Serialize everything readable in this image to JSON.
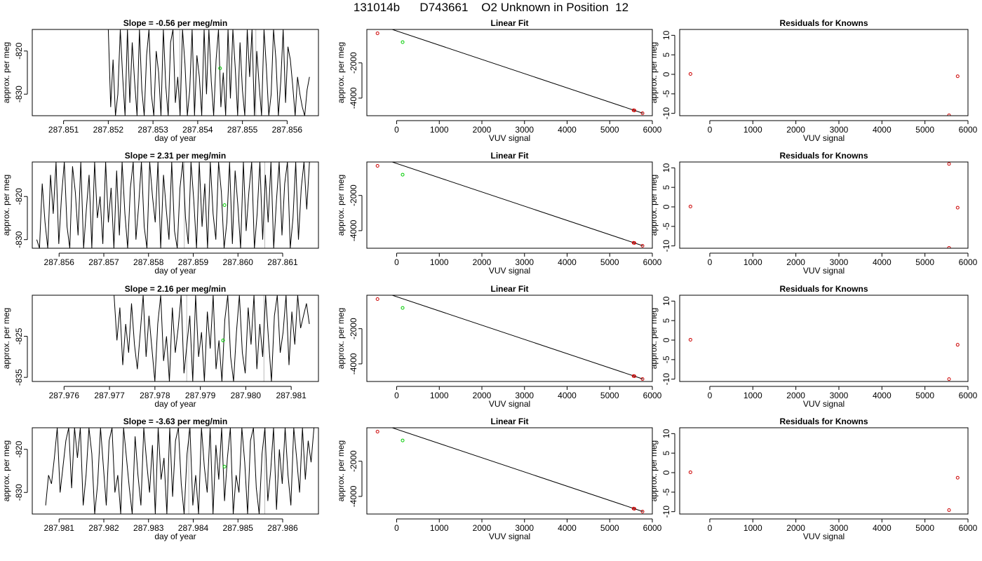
{
  "title": "131014b      D743661    O2 Unknown in Position  12",
  "colors": {
    "line": "#000000",
    "known_point": "#cc0000",
    "unknown_point": "#00cc00",
    "marker_line": "#bbbbbb",
    "fit_line": "#000000"
  },
  "chart_data": [
    {
      "type": "line",
      "row": 0,
      "title": "Slope =  -0.56  per meg/min",
      "xlabel": "day of year",
      "ylabel": "approx. per meg",
      "xlim": [
        287.8503,
        287.8567
      ],
      "ylim": [
        -835,
        -815
      ],
      "xticks": [
        "287.851",
        "287.852",
        "287.853",
        "287.854",
        "287.855",
        "287.856"
      ],
      "yticks": [
        "-820",
        "-830"
      ],
      "ytick_values": [
        -820,
        -830
      ],
      "xtick_values": [
        287.851,
        287.852,
        287.853,
        287.854,
        287.855,
        287.856
      ],
      "markers": [
        287.8536,
        287.8553
      ],
      "unknown_point": {
        "x": 287.8545,
        "y": -824
      },
      "series_start": 287.852,
      "series_end": 287.8565,
      "values": [
        -815,
        -833,
        -822,
        -835,
        -830,
        -815,
        -826,
        -835,
        -815,
        -832,
        -818,
        -827,
        -835,
        -815,
        -829,
        -835,
        -821,
        -815,
        -830,
        -835,
        -820,
        -825,
        -835,
        -815,
        -828,
        -835,
        -818,
        -815,
        -832,
        -826,
        -835,
        -815,
        -823,
        -835,
        -829,
        -815,
        -835,
        -821,
        -826,
        -835,
        -815,
        -830,
        -815,
        -827,
        -835,
        -822,
        -815,
        -833,
        -825,
        -835,
        -815,
        -831,
        -815,
        -824,
        -835,
        -818,
        -829,
        -835,
        -815,
        -826,
        -815,
        -835,
        -820,
        -828,
        -835,
        -815,
        -824,
        -835,
        -830,
        -815,
        -822,
        -835,
        -827,
        -815,
        -832,
        -819,
        -822,
        -828,
        -835,
        -826,
        -830,
        -833,
        -835,
        -829,
        -826
      ]
    },
    {
      "type": "scatter",
      "row": 0,
      "title": "Linear Fit",
      "xlabel": "VUV signal",
      "ylabel": "approx. per meg",
      "xlim": [
        -700,
        6000
      ],
      "ylim": [
        -5000,
        -100
      ],
      "xticks": [
        "0",
        "1000",
        "2000",
        "3000",
        "4000",
        "5000",
        "6000"
      ],
      "xtick_values": [
        0,
        1000,
        2000,
        3000,
        4000,
        5000,
        6000
      ],
      "yticks": [
        "-2000",
        "-4000"
      ],
      "ytick_values": [
        -2000,
        -4000
      ],
      "fit_line": [
        [
          -600,
          300
        ],
        [
          5780,
          -4860
        ]
      ],
      "known": [
        [
          -450,
          -320
        ],
        [
          5560,
          -4690
        ],
        [
          5580,
          -4700
        ],
        [
          5770,
          -4860
        ]
      ],
      "unknown": [
        [
          140,
          -820
        ]
      ]
    },
    {
      "type": "scatter",
      "row": 0,
      "title": "Residuals for Knowns",
      "xlabel": "VUV signal",
      "ylabel": "approx. per meg",
      "xlim": [
        -700,
        6000
      ],
      "ylim": [
        -10.6,
        11.5
      ],
      "xticks": [
        "0",
        "1000",
        "2000",
        "3000",
        "4000",
        "5000",
        "6000"
      ],
      "xtick_values": [
        0,
        1000,
        2000,
        3000,
        4000,
        5000,
        6000
      ],
      "yticks": [
        "10",
        "5",
        "0",
        "-5",
        "-10"
      ],
      "ytick_values": [
        10,
        5,
        0,
        -5,
        -10
      ],
      "known": [
        [
          -450,
          0.1
        ],
        [
          5560,
          -10.5
        ],
        [
          5760,
          -0.5
        ]
      ]
    },
    {
      "type": "line",
      "row": 1,
      "title": "Slope =  2.31  per meg/min",
      "xlabel": "day of year",
      "ylabel": "approx. per meg",
      "xlim": [
        287.8554,
        287.8618
      ],
      "ylim": [
        -832,
        -812
      ],
      "xticks": [
        "287.856",
        "287.857",
        "287.858",
        "287.859",
        "287.860",
        "287.861"
      ],
      "xtick_values": [
        287.856,
        287.857,
        287.858,
        287.859,
        287.86,
        287.861
      ],
      "yticks": [
        "-820",
        "-830"
      ],
      "ytick_values": [
        -820,
        -830
      ],
      "markers": [
        287.8588,
        287.8606
      ],
      "unknown_point": {
        "x": 287.8597,
        "y": -822
      },
      "series_start": 287.8555,
      "series_end": 287.8616,
      "values": [
        -830,
        -832,
        -817,
        -826,
        -832,
        -815,
        -824,
        -812,
        -831,
        -820,
        -812,
        -827,
        -832,
        -813,
        -819,
        -829,
        -812,
        -832,
        -823,
        -815,
        -832,
        -812,
        -825,
        -820,
        -831,
        -812,
        -826,
        -818,
        -832,
        -814,
        -829,
        -812,
        -824,
        -832,
        -818,
        -812,
        -830,
        -822,
        -812,
        -827,
        -832,
        -812,
        -820,
        -826,
        -812,
        -832,
        -815,
        -823,
        -830,
        -812,
        -828,
        -832,
        -818,
        -812,
        -825,
        -831,
        -812,
        -821,
        -832,
        -812,
        -827,
        -817,
        -832,
        -812,
        -824,
        -830,
        -812,
        -819,
        -832,
        -826,
        -812,
        -831,
        -814,
        -822,
        -832,
        -812,
        -828,
        -819,
        -812,
        -832,
        -824,
        -812,
        -830,
        -815,
        -826,
        -812,
        -832,
        -821,
        -812,
        -829,
        -817,
        -812,
        -832,
        -825,
        -812,
        -830,
        -818,
        -812,
        -823,
        -812
      ]
    },
    {
      "type": "scatter",
      "row": 1,
      "title": "Linear Fit",
      "xlabel": "VUV signal",
      "ylabel": "approx. per meg",
      "xlim": [
        -700,
        6000
      ],
      "ylim": [
        -5000,
        -100
      ],
      "xticks": [
        "0",
        "1000",
        "2000",
        "3000",
        "4000",
        "5000",
        "6000"
      ],
      "xtick_values": [
        0,
        1000,
        2000,
        3000,
        4000,
        5000,
        6000
      ],
      "yticks": [
        "-2000",
        "-4000"
      ],
      "ytick_values": [
        -2000,
        -4000
      ],
      "fit_line": [
        [
          -600,
          300
        ],
        [
          5780,
          -4860
        ]
      ],
      "known": [
        [
          -450,
          -320
        ],
        [
          5560,
          -4690
        ],
        [
          5580,
          -4700
        ],
        [
          5770,
          -4860
        ]
      ],
      "unknown": [
        [
          140,
          -820
        ]
      ]
    },
    {
      "type": "scatter",
      "row": 1,
      "title": "Residuals for Knowns",
      "xlabel": "VUV signal",
      "ylabel": "approx. per meg",
      "xlim": [
        -700,
        6000
      ],
      "ylim": [
        -10.6,
        11.5
      ],
      "xticks": [
        "0",
        "1000",
        "2000",
        "3000",
        "4000",
        "5000",
        "6000"
      ],
      "xtick_values": [
        0,
        1000,
        2000,
        3000,
        4000,
        5000,
        6000
      ],
      "yticks": [
        "10",
        "5",
        "0",
        "-5",
        "-10"
      ],
      "ytick_values": [
        10,
        5,
        0,
        -5,
        -10
      ],
      "known": [
        [
          -450,
          0.1
        ],
        [
          5560,
          11.0
        ],
        [
          5560,
          -10.5
        ],
        [
          5760,
          -0.2
        ]
      ]
    },
    {
      "type": "line",
      "row": 2,
      "title": "Slope =  2.16  per meg/min",
      "xlabel": "day of year",
      "ylabel": "approx. per meg",
      "xlim": [
        287.9753,
        287.9816
      ],
      "ylim": [
        -836,
        -815
      ],
      "xticks": [
        "287.976",
        "287.977",
        "287.978",
        "287.979",
        "287.980",
        "287.981"
      ],
      "xtick_values": [
        287.976,
        287.977,
        287.978,
        287.979,
        287.98,
        287.981
      ],
      "yticks": [
        "-825",
        "-835"
      ],
      "ytick_values": [
        -825,
        -835
      ],
      "markers": [
        287.9787,
        287.9804
      ],
      "unknown_point": {
        "x": 287.9795,
        "y": -826
      },
      "series_start": 287.9771,
      "series_end": 287.9814,
      "values": [
        -815,
        -826,
        -818,
        -832,
        -822,
        -829,
        -817,
        -827,
        -833,
        -824,
        -815,
        -830,
        -820,
        -828,
        -836,
        -822,
        -815,
        -831,
        -825,
        -836,
        -818,
        -829,
        -823,
        -815,
        -834,
        -827,
        -820,
        -836,
        -815,
        -830,
        -824,
        -836,
        -819,
        -828,
        -815,
        -833,
        -826,
        -836,
        -821,
        -815,
        -830,
        -836,
        -824,
        -815,
        -829,
        -834,
        -818,
        -827,
        -815,
        -833,
        -822,
        -830,
        -815,
        -826,
        -836,
        -820,
        -815,
        -829,
        -824,
        -815,
        -832,
        -819,
        -827,
        -815,
        -823,
        -820,
        -817,
        -822
      ]
    },
    {
      "type": "scatter",
      "row": 2,
      "title": "Linear Fit",
      "xlabel": "VUV signal",
      "ylabel": "approx. per meg",
      "xlim": [
        -700,
        6000
      ],
      "ylim": [
        -5000,
        -100
      ],
      "xticks": [
        "0",
        "1000",
        "2000",
        "3000",
        "4000",
        "5000",
        "6000"
      ],
      "xtick_values": [
        0,
        1000,
        2000,
        3000,
        4000,
        5000,
        6000
      ],
      "yticks": [
        "-2000",
        "-4000"
      ],
      "ytick_values": [
        -2000,
        -4000
      ],
      "fit_line": [
        [
          -600,
          300
        ],
        [
          5780,
          -4860
        ]
      ],
      "known": [
        [
          -450,
          -320
        ],
        [
          5560,
          -4690
        ],
        [
          5580,
          -4700
        ],
        [
          5770,
          -4860
        ]
      ],
      "unknown": [
        [
          140,
          -820
        ]
      ]
    },
    {
      "type": "scatter",
      "row": 2,
      "title": "Residuals for Knowns",
      "xlabel": "VUV signal",
      "ylabel": "approx. per meg",
      "xlim": [
        -700,
        6000
      ],
      "ylim": [
        -10.6,
        11.5
      ],
      "xticks": [
        "0",
        "1000",
        "2000",
        "3000",
        "4000",
        "5000",
        "6000"
      ],
      "xtick_values": [
        0,
        1000,
        2000,
        3000,
        4000,
        5000,
        6000
      ],
      "yticks": [
        "10",
        "5",
        "0",
        "-5",
        "-10"
      ],
      "ytick_values": [
        10,
        5,
        0,
        -5,
        -10
      ],
      "known": [
        [
          -450,
          0.1
        ],
        [
          5560,
          -10.0
        ],
        [
          5760,
          -1.2
        ]
      ]
    },
    {
      "type": "line",
      "row": 3,
      "title": "Slope =  -3.63  per meg/min",
      "xlabel": "day of year",
      "ylabel": "approx. per meg",
      "xlim": [
        287.9804,
        287.9868
      ],
      "ylim": [
        -835,
        -815
      ],
      "xticks": [
        "287.981",
        "287.982",
        "287.983",
        "287.984",
        "287.985",
        "287.986"
      ],
      "xtick_values": [
        287.981,
        287.982,
        287.983,
        287.984,
        287.985,
        287.986
      ],
      "yticks": [
        "-820",
        "-830"
      ],
      "ytick_values": [
        -820,
        -830
      ],
      "markers": [
        287.9839,
        287.9856
      ],
      "unknown_point": {
        "x": 287.9847,
        "y": -824
      },
      "series_start": 287.9807,
      "series_end": 287.9867,
      "values": [
        -833,
        -826,
        -828,
        -822,
        -815,
        -830,
        -824,
        -818,
        -815,
        -829,
        -815,
        -822,
        -815,
        -833,
        -826,
        -815,
        -821,
        -835,
        -828,
        -815,
        -824,
        -833,
        -818,
        -815,
        -830,
        -826,
        -835,
        -815,
        -822,
        -829,
        -835,
        -817,
        -826,
        -833,
        -815,
        -823,
        -830,
        -819,
        -835,
        -815,
        -827,
        -822,
        -835,
        -815,
        -831,
        -818,
        -815,
        -828,
        -835,
        -821,
        -815,
        -833,
        -826,
        -835,
        -815,
        -824,
        -830,
        -815,
        -835,
        -819,
        -827,
        -815,
        -832,
        -822,
        -815,
        -835,
        -826,
        -830,
        -815,
        -823,
        -835,
        -818,
        -815,
        -829,
        -835,
        -821,
        -815,
        -832,
        -825,
        -815,
        -834,
        -820,
        -828,
        -815,
        -826,
        -833,
        -815,
        -822,
        -830,
        -815,
        -827,
        -818,
        -823,
        -815
      ]
    },
    {
      "type": "scatter",
      "row": 3,
      "title": "Linear Fit",
      "xlabel": "VUV signal",
      "ylabel": "approx. per meg",
      "xlim": [
        -700,
        6000
      ],
      "ylim": [
        -5000,
        -100
      ],
      "xticks": [
        "0",
        "1000",
        "2000",
        "3000",
        "4000",
        "5000",
        "6000"
      ],
      "xtick_values": [
        0,
        1000,
        2000,
        3000,
        4000,
        5000,
        6000
      ],
      "yticks": [
        "-2000",
        "-4000"
      ],
      "ytick_values": [
        -2000,
        -4000
      ],
      "fit_line": [
        [
          -600,
          300
        ],
        [
          5780,
          -4860
        ]
      ],
      "known": [
        [
          -450,
          -320
        ],
        [
          5560,
          -4690
        ],
        [
          5580,
          -4700
        ],
        [
          5770,
          -4860
        ]
      ],
      "unknown": [
        [
          140,
          -820
        ]
      ]
    },
    {
      "type": "scatter",
      "row": 3,
      "title": "Residuals for Knowns",
      "xlabel": "VUV signal",
      "ylabel": "approx. per meg",
      "xlim": [
        -700,
        6000
      ],
      "ylim": [
        -10.6,
        11.5
      ],
      "xticks": [
        "0",
        "1000",
        "2000",
        "3000",
        "4000",
        "5000",
        "6000"
      ],
      "xtick_values": [
        0,
        1000,
        2000,
        3000,
        4000,
        5000,
        6000
      ],
      "yticks": [
        "10",
        "5",
        "0",
        "-5",
        "-10"
      ],
      "ytick_values": [
        10,
        5,
        0,
        -5,
        -10
      ],
      "known": [
        [
          -450,
          0.1
        ],
        [
          5560,
          -9.6
        ],
        [
          5760,
          -1.3
        ]
      ]
    }
  ]
}
